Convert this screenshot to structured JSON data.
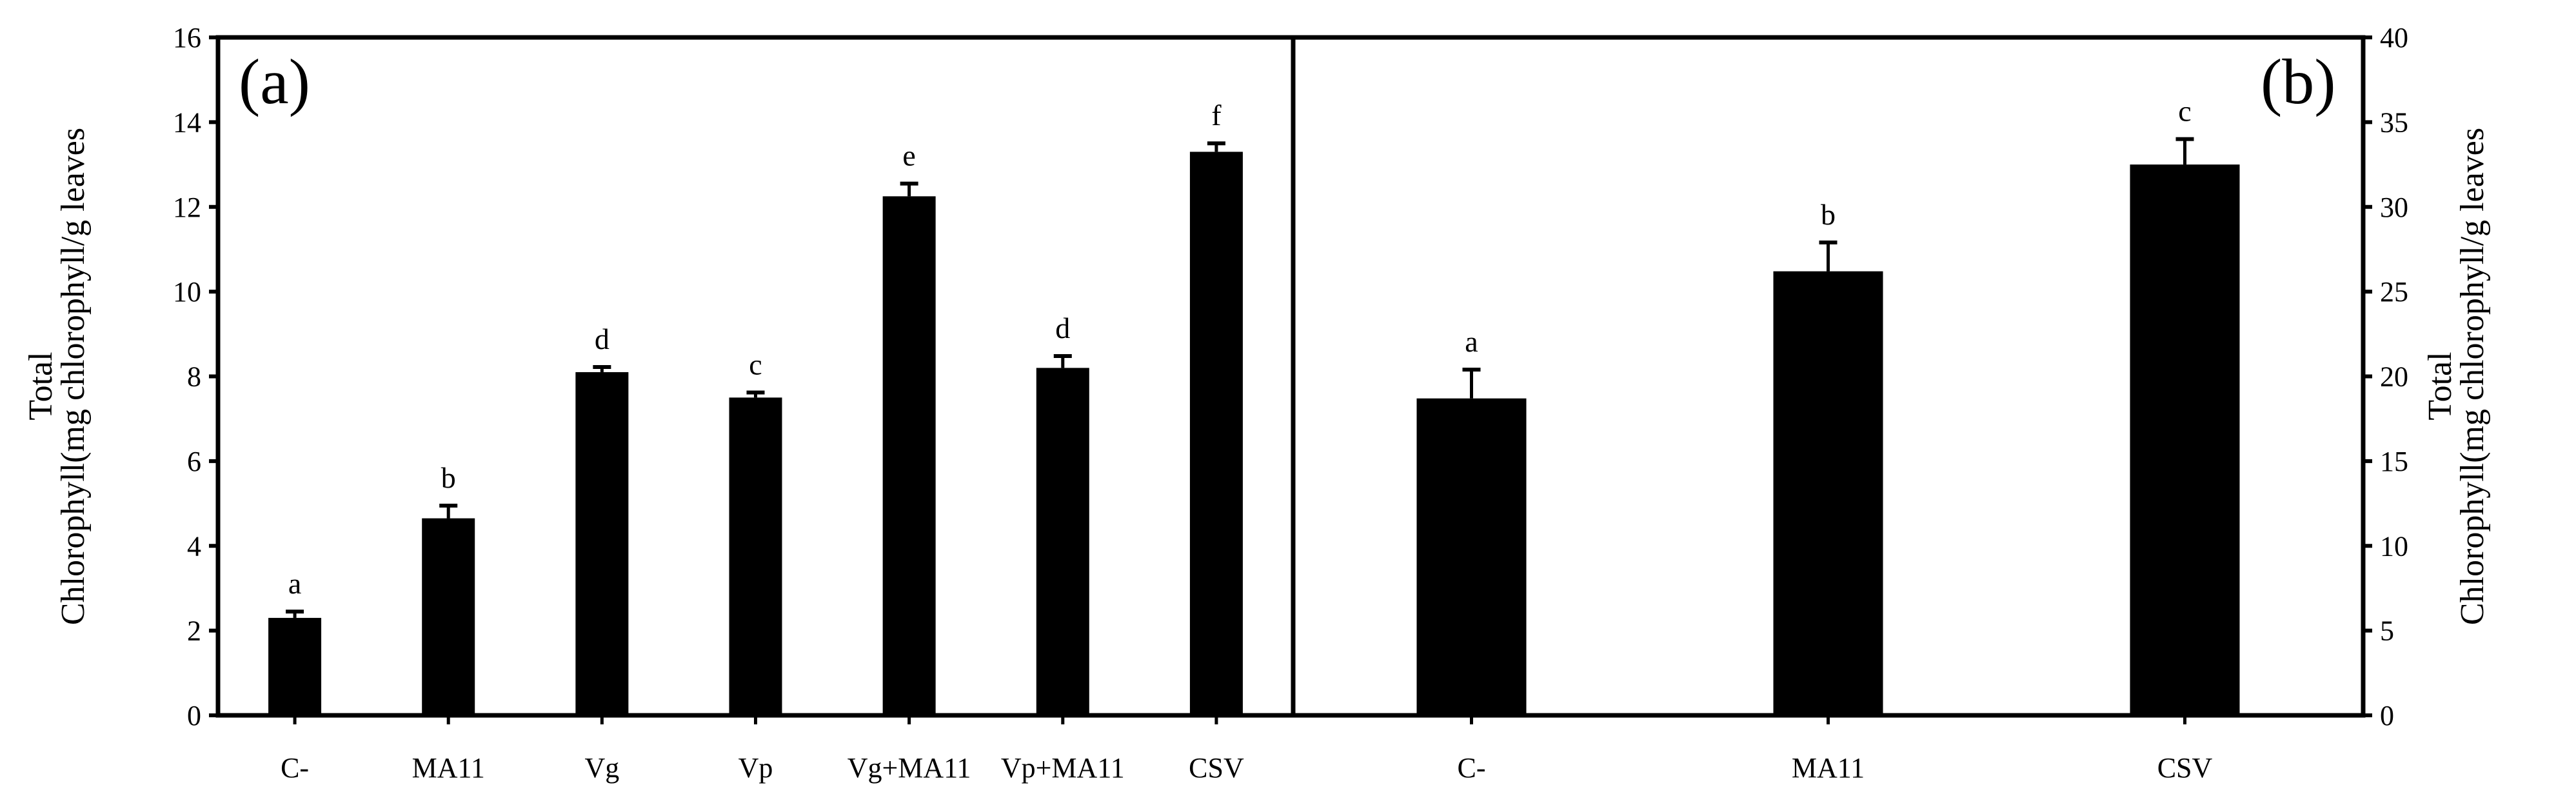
{
  "chart_data": [
    {
      "type": "bar",
      "panel_label": "(a)",
      "categories": [
        "C-",
        "MA11",
        "Vg",
        "Vp",
        "Vg+MA11",
        "Vp+MA11",
        "CSV"
      ],
      "values": [
        2.3,
        4.65,
        8.1,
        7.5,
        12.25,
        8.2,
        13.3
      ],
      "errors": [
        0.15,
        0.3,
        0.12,
        0.12,
        0.3,
        0.28,
        0.2
      ],
      "letters": [
        "a",
        "b",
        "d",
        "c",
        "e",
        "d",
        "f"
      ],
      "ylabel": [
        "Total",
        "Chlorophyll(mg chlorophyll/g leaves"
      ],
      "ylim": [
        0,
        16
      ],
      "yticks": [
        0,
        2,
        4,
        6,
        8,
        10,
        12,
        14,
        16
      ],
      "axis_side": "left",
      "grid": false
    },
    {
      "type": "bar",
      "panel_label": "(b)",
      "categories": [
        "C-",
        "MA11",
        "CSV"
      ],
      "values": [
        18.7,
        26.2,
        32.5
      ],
      "errors": [
        1.7,
        1.7,
        1.5
      ],
      "letters": [
        "a",
        "b",
        "c"
      ],
      "ylabel": [
        "Total",
        "Chlorophyll(mg chlorophyll/g leaves"
      ],
      "ylim": [
        0,
        40
      ],
      "yticks": [
        0,
        5,
        10,
        15,
        20,
        25,
        30,
        35,
        40
      ],
      "axis_side": "right",
      "grid": false
    }
  ],
  "colors": {
    "bar": "#000000",
    "axis": "#000000"
  }
}
